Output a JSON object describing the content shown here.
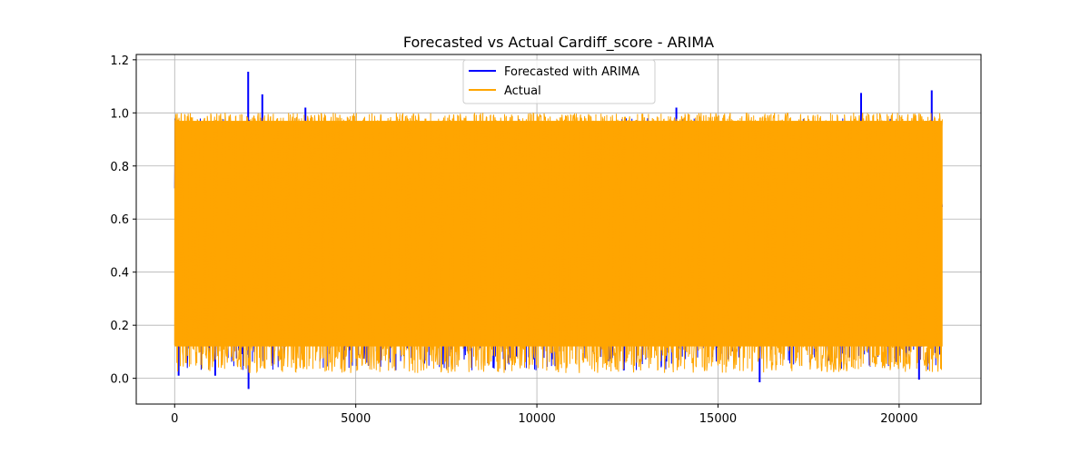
{
  "chart_data": {
    "type": "line",
    "title": "Forecasted vs Actual Cardiff_score - ARIMA",
    "xlabel": "",
    "ylabel": "",
    "xlim": [
      -1060,
      22260
    ],
    "ylim": [
      -0.097,
      1.22
    ],
    "xticks": [
      0,
      5000,
      10000,
      15000,
      20000
    ],
    "xtick_labels": [
      "0",
      "5000",
      "10000",
      "15000",
      "20000"
    ],
    "yticks": [
      0.0,
      0.2,
      0.4,
      0.6,
      0.8,
      1.0,
      1.2
    ],
    "ytick_labels": [
      "0.0",
      "0.2",
      "0.4",
      "0.6",
      "0.8",
      "1.0",
      "1.2"
    ],
    "grid": true,
    "legend_position": "top-center",
    "n_points": 21200,
    "series": [
      {
        "name": "Forecasted with ARIMA",
        "color": "#0000ff",
        "x_range": [
          0,
          21200
        ],
        "value_range": [
          0.03,
          0.98
        ],
        "extremes": [
          {
            "x": 2030,
            "y": 1.155
          },
          {
            "x": 2040,
            "y": -0.04
          },
          {
            "x": 2420,
            "y": 1.07
          },
          {
            "x": 3610,
            "y": 1.02
          },
          {
            "x": 1120,
            "y": 0.01
          },
          {
            "x": 110,
            "y": 0.01
          },
          {
            "x": 8800,
            "y": 0.04
          },
          {
            "x": 12400,
            "y": 0.03
          },
          {
            "x": 13850,
            "y": 1.02
          },
          {
            "x": 16150,
            "y": -0.015
          },
          {
            "x": 18950,
            "y": 1.075
          },
          {
            "x": 20550,
            "y": -0.005
          },
          {
            "x": 20900,
            "y": 1.085
          }
        ]
      },
      {
        "name": "Actual",
        "color": "#ffa500",
        "x_range": [
          0,
          21200
        ],
        "value_range": [
          0.0,
          1.0
        ],
        "band_range": [
          0.02,
          1.0
        ]
      }
    ]
  }
}
